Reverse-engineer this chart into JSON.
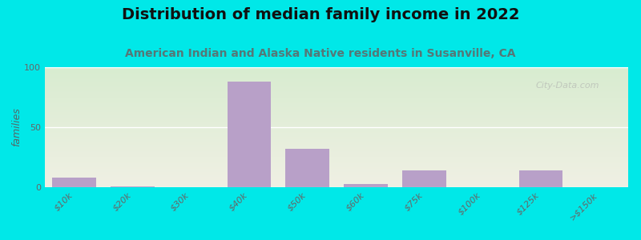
{
  "title": "Distribution of median family income in 2022",
  "subtitle": "American Indian and Alaska Native residents in Susanville, CA",
  "categories": [
    "$10k",
    "$20k",
    "$30k",
    "$40k",
    "$50k",
    "$60k",
    "$75k",
    "$100k",
    "$125k",
    ">$150k"
  ],
  "values": [
    8,
    1,
    0,
    88,
    32,
    3,
    14,
    0,
    14,
    0
  ],
  "bar_color": "#b8a0c8",
  "background_outer": "#00e8e8",
  "background_plot_topleft": "#d8ecd0",
  "background_plot_bottomright": "#f0f0e4",
  "ylabel": "families",
  "ylim": [
    0,
    100
  ],
  "yticks": [
    0,
    50,
    100
  ],
  "grid_color": "#ffffff",
  "title_fontsize": 14,
  "subtitle_fontsize": 10,
  "watermark": "City-Data.com",
  "title_color": "#111111",
  "subtitle_color": "#557777",
  "tick_color": "#666666",
  "ylabel_color": "#556666"
}
